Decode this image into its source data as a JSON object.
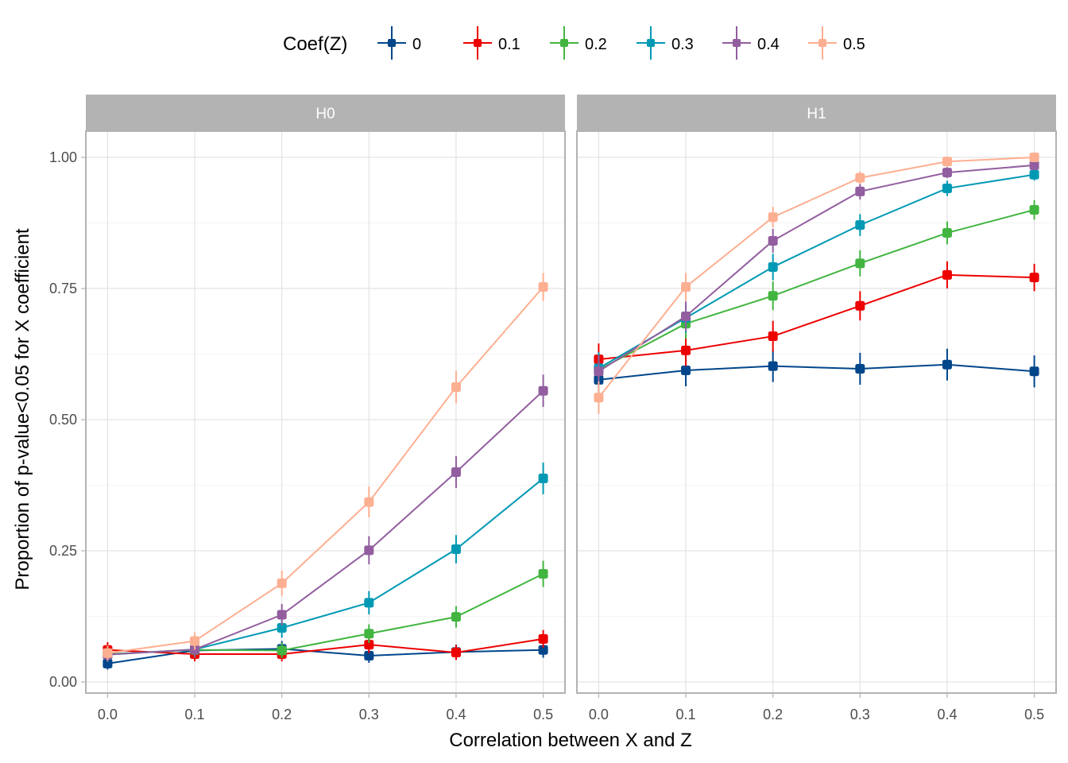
{
  "chart_data": {
    "type": "line",
    "title": "",
    "xlabel": "Correlation between X and Z",
    "ylabel": "Proportion of p-value<0.05 for X coefficient",
    "legend": {
      "title": "Coef(Z)",
      "position": "top",
      "entries": [
        "0",
        "0.1",
        "0.2",
        "0.3",
        "0.4",
        "0.5"
      ]
    },
    "x": [
      0.0,
      0.1,
      0.2,
      0.3,
      0.4,
      0.5
    ],
    "x_tick_labels": [
      "0.0",
      "0.1",
      "0.2",
      "0.3",
      "0.4",
      "0.5"
    ],
    "xlim": [
      -0.025,
      0.525
    ],
    "ylim": [
      -0.02,
      1.05
    ],
    "y_ticks": [
      0.0,
      0.25,
      0.5,
      0.75,
      1.0
    ],
    "y_tick_labels": [
      "0.00",
      "0.25",
      "0.50",
      "0.75",
      "1.00"
    ],
    "grid": true,
    "error_bars": "±1.96·SE (binomial, n≈1000)",
    "colors": {
      "0": "#00468b",
      "0.1": "#ed0000",
      "0.2": "#42b540",
      "0.3": "#0099b4",
      "0.4": "#925e9f",
      "0.5": "#fdaf91"
    },
    "strip_color": "#b3b3b3",
    "panels": [
      {
        "label": "H0",
        "series": [
          {
            "name": "0",
            "values": [
              0.035,
              0.06,
              0.063,
              0.05,
              0.057,
              0.061
            ]
          },
          {
            "name": "0.1",
            "values": [
              0.061,
              0.053,
              0.053,
              0.071,
              0.056,
              0.082
            ]
          },
          {
            "name": "0.2",
            "values": [
              0.053,
              0.061,
              0.06,
              0.092,
              0.124,
              0.206
            ]
          },
          {
            "name": "0.3",
            "values": [
              0.052,
              0.062,
              0.103,
              0.151,
              0.253,
              0.388
            ]
          },
          {
            "name": "0.4",
            "values": [
              0.052,
              0.062,
              0.128,
              0.251,
              0.4,
              0.555
            ]
          },
          {
            "name": "0.5",
            "values": [
              0.055,
              0.078,
              0.188,
              0.343,
              0.562,
              0.753
            ]
          }
        ]
      },
      {
        "label": "H1",
        "series": [
          {
            "name": "0",
            "values": [
              0.576,
              0.594,
              0.602,
              0.597,
              0.605,
              0.592
            ]
          },
          {
            "name": "0.1",
            "values": [
              0.615,
              0.632,
              0.659,
              0.717,
              0.776,
              0.771
            ]
          },
          {
            "name": "0.2",
            "values": [
              0.595,
              0.683,
              0.736,
              0.798,
              0.856,
              0.9
            ]
          },
          {
            "name": "0.3",
            "values": [
              0.598,
              0.694,
              0.791,
              0.871,
              0.941,
              0.967
            ]
          },
          {
            "name": "0.4",
            "values": [
              0.592,
              0.697,
              0.841,
              0.935,
              0.971,
              0.985
            ]
          },
          {
            "name": "0.5",
            "values": [
              0.542,
              0.753,
              0.886,
              0.961,
              0.992,
              1.0
            ]
          }
        ]
      }
    ]
  }
}
